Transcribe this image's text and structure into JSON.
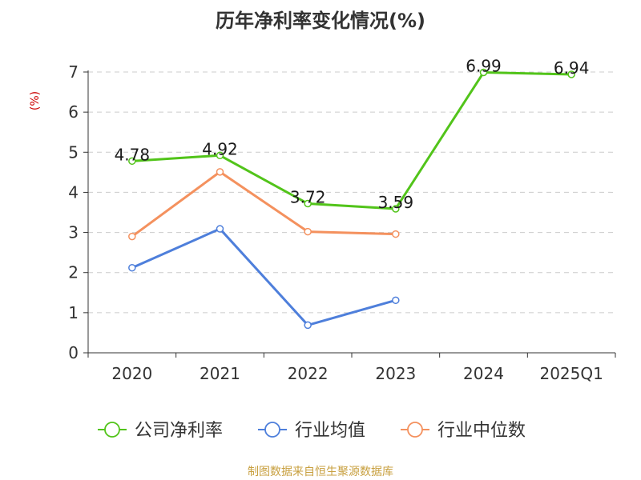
{
  "chart_data": {
    "type": "line",
    "title": "历年净利率变化情况(%)",
    "ylabel": "(%)",
    "xlabel": "",
    "categories": [
      "2020",
      "2021",
      "2022",
      "2023",
      "2024",
      "2025Q1"
    ],
    "ylim": [
      0,
      7
    ],
    "yticks": [
      "0",
      "1",
      "2",
      "3",
      "4",
      "5",
      "6",
      "7"
    ],
    "grid": "horizontal dashed",
    "legend_position": "bottom",
    "series": [
      {
        "name": "公司净利率",
        "color": "#52c41a",
        "values": [
          4.78,
          4.92,
          3.72,
          3.59,
          6.99,
          6.94
        ],
        "data_labels": [
          "4.78",
          "4.92",
          "3.72",
          "3.59",
          "6.99",
          "6.94"
        ]
      },
      {
        "name": "行业均值",
        "color": "#4e7fdb",
        "values": [
          2.12,
          3.09,
          0.69,
          1.31,
          null,
          null
        ],
        "data_labels": []
      },
      {
        "name": "行业中位数",
        "color": "#f4915e",
        "values": [
          2.9,
          4.51,
          3.02,
          2.96,
          null,
          null
        ],
        "data_labels": []
      }
    ]
  },
  "footer": "制图数据来自恒生聚源数据库",
  "colors": {
    "title": "#333333",
    "axis": "#333333",
    "grid": "#cccccc",
    "ylabel": "#cc0000",
    "footer": "#c8a040"
  }
}
